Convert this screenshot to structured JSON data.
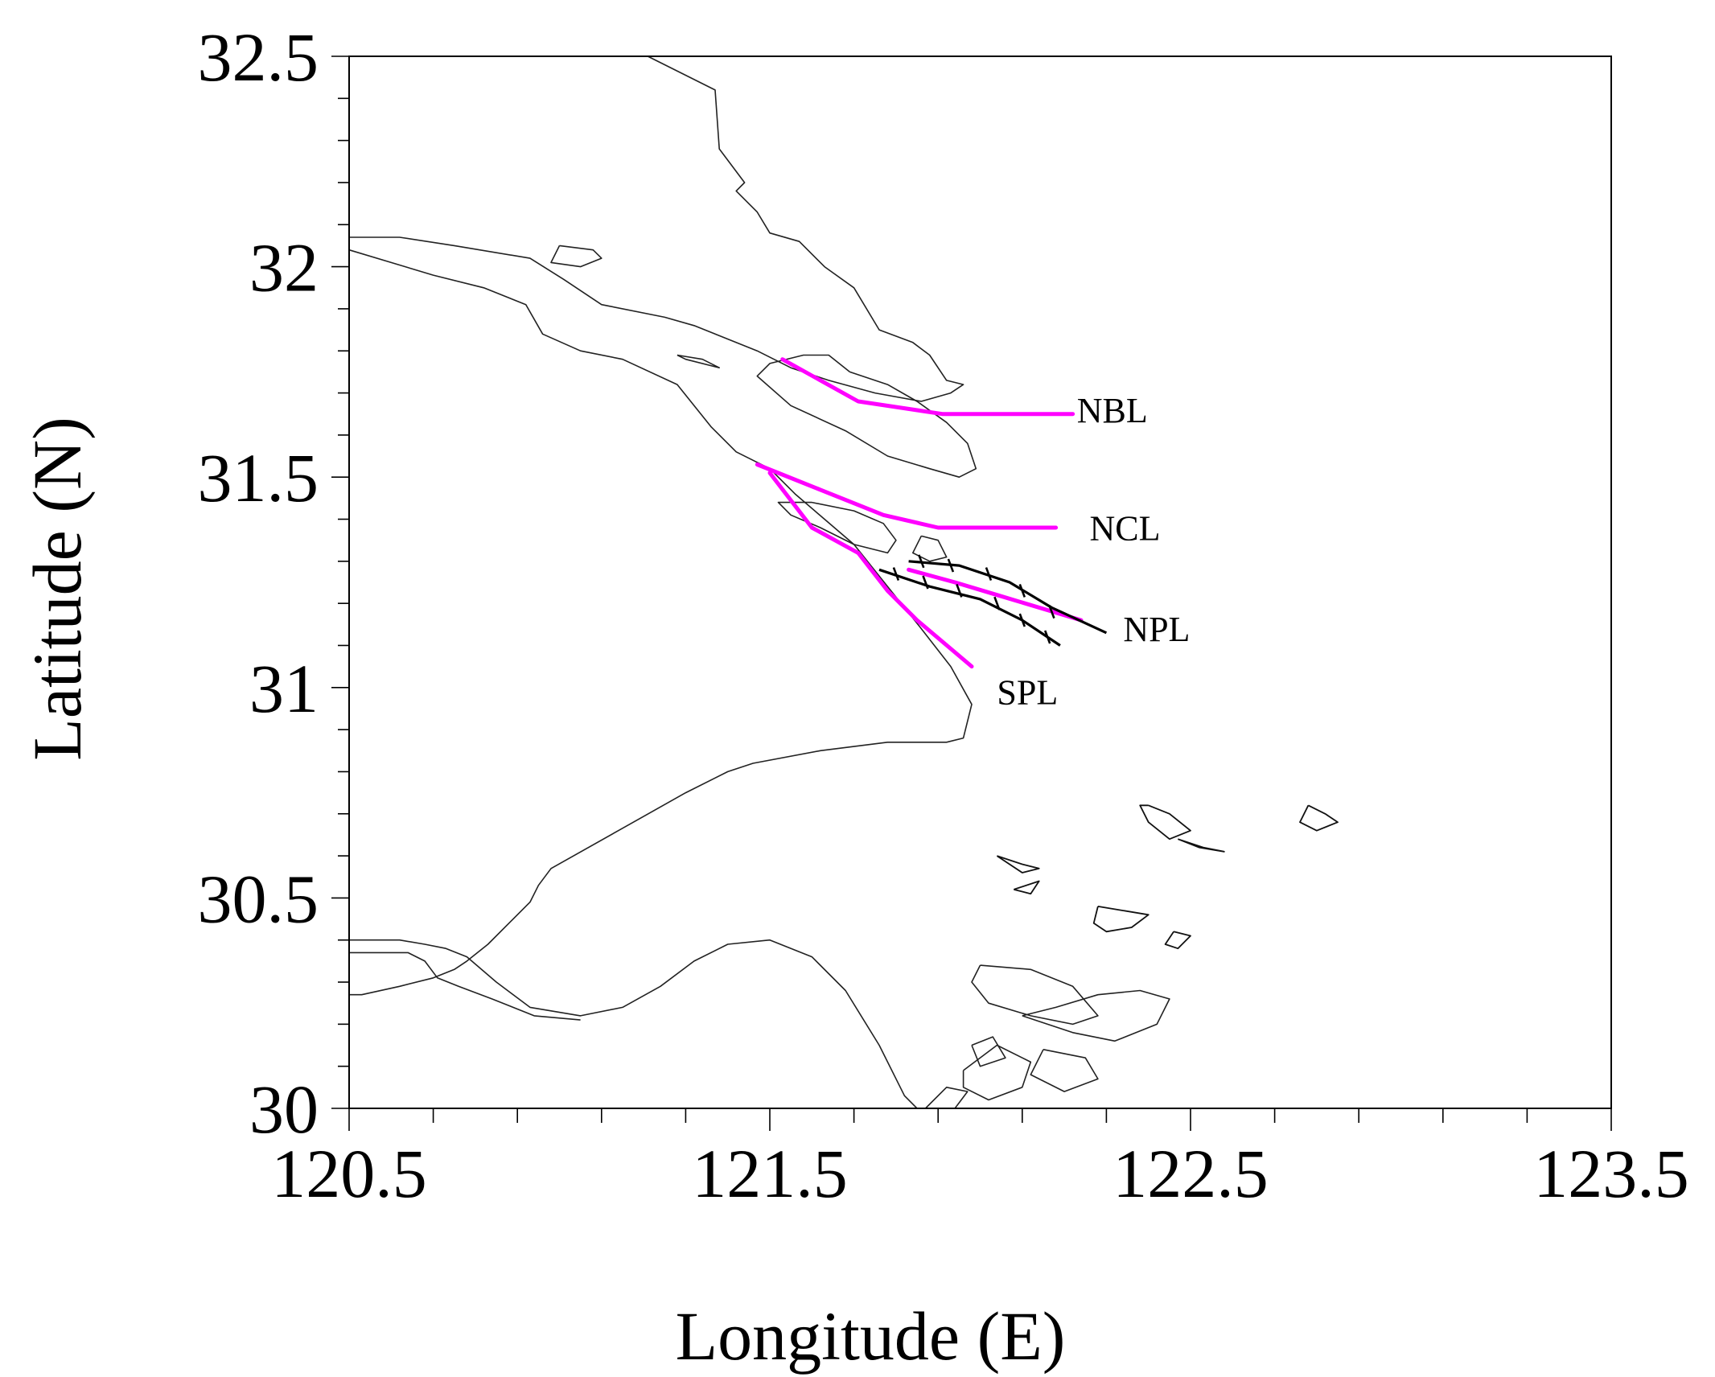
{
  "map": {
    "xlabel": "Longitude (E)",
    "ylabel": "Latitude (N)",
    "xlim": [
      120.5,
      123.5
    ],
    "ylim": [
      30.0,
      32.5
    ],
    "x_major_ticks": [
      120.5,
      121.5,
      122.5,
      123.5
    ],
    "x_tick_labels": [
      "120.5",
      "121.5",
      "122.5",
      "123.5"
    ],
    "y_major_ticks": [
      30.0,
      30.5,
      31.0,
      31.5,
      32.0,
      32.5
    ],
    "y_tick_labels": [
      "30",
      "30.5",
      "31",
      "31.5",
      "32",
      "32.5"
    ],
    "x_minor_step": 0.2,
    "y_minor_step": 0.1,
    "transect_color": "#ff00ff",
    "channel_color": "#000000",
    "coast_color": "#222222"
  },
  "transects": [
    {
      "name": "NBL",
      "label": "NBL",
      "label_at": [
        122.23,
        31.63
      ],
      "points": [
        [
          121.53,
          31.78
        ],
        [
          121.71,
          31.68
        ],
        [
          121.91,
          31.65
        ],
        [
          122.22,
          31.65
        ]
      ]
    },
    {
      "name": "NCL",
      "label": "NCL",
      "label_at": [
        122.26,
        31.35
      ],
      "points": [
        [
          121.47,
          31.53
        ],
        [
          121.62,
          31.47
        ],
        [
          121.77,
          31.41
        ],
        [
          121.9,
          31.38
        ],
        [
          122.18,
          31.38
        ]
      ]
    },
    {
      "name": "NPL",
      "label": "NPL",
      "label_at": [
        122.34,
        31.11
      ],
      "points": [
        [
          121.83,
          31.28
        ],
        [
          121.94,
          31.25
        ],
        [
          122.04,
          31.22
        ],
        [
          122.24,
          31.16
        ]
      ]
    },
    {
      "name": "SPL",
      "label": "SPL",
      "label_at": [
        122.04,
        30.96
      ],
      "points": [
        [
          121.5,
          31.51
        ],
        [
          121.6,
          31.38
        ],
        [
          121.71,
          31.32
        ],
        [
          121.78,
          31.23
        ],
        [
          121.85,
          31.16
        ],
        [
          121.98,
          31.05
        ]
      ]
    }
  ],
  "channel_lines": [
    {
      "name": "north-jetty",
      "points": [
        [
          121.83,
          31.3
        ],
        [
          121.95,
          31.29
        ],
        [
          122.07,
          31.25
        ],
        [
          122.17,
          31.19
        ],
        [
          122.3,
          31.13
        ]
      ],
      "ticks": [
        [
          121.86,
          31.3
        ],
        [
          121.93,
          31.29
        ],
        [
          122.02,
          31.27
        ],
        [
          122.1,
          31.23
        ],
        [
          122.17,
          31.18
        ]
      ]
    },
    {
      "name": "south-jetty",
      "points": [
        [
          121.76,
          31.28
        ],
        [
          121.88,
          31.24
        ],
        [
          122.0,
          31.21
        ],
        [
          122.1,
          31.16
        ],
        [
          122.19,
          31.1
        ]
      ],
      "ticks": [
        [
          121.8,
          31.27
        ],
        [
          121.87,
          31.25
        ],
        [
          121.95,
          31.23
        ],
        [
          122.04,
          31.2
        ],
        [
          122.1,
          31.16
        ],
        [
          122.16,
          31.12
        ]
      ]
    }
  ],
  "coastlines": [
    [
      [
        121.21,
        32.5
      ],
      [
        121.37,
        32.42
      ],
      [
        121.38,
        32.28
      ],
      [
        121.44,
        32.2
      ],
      [
        121.42,
        32.18
      ],
      [
        121.47,
        32.13
      ],
      [
        121.5,
        32.08
      ],
      [
        121.57,
        32.06
      ],
      [
        121.63,
        32.0
      ],
      [
        121.7,
        31.95
      ],
      [
        121.76,
        31.85
      ],
      [
        121.84,
        31.82
      ],
      [
        121.88,
        31.79
      ],
      [
        121.92,
        31.73
      ],
      [
        121.96,
        31.72
      ],
      [
        121.93,
        31.7
      ],
      [
        121.86,
        31.68
      ],
      [
        121.75,
        31.7
      ],
      [
        121.64,
        31.73
      ],
      [
        121.55,
        31.76
      ],
      [
        121.47,
        31.8
      ],
      [
        121.32,
        31.86
      ],
      [
        121.25,
        31.88
      ],
      [
        121.1,
        31.91
      ],
      [
        121.01,
        31.97
      ],
      [
        120.93,
        32.02
      ],
      [
        120.75,
        32.05
      ],
      [
        120.62,
        32.07
      ],
      [
        120.55,
        32.07
      ],
      [
        120.5,
        32.07
      ]
    ],
    [
      [
        120.5,
        32.04
      ],
      [
        120.6,
        32.01
      ],
      [
        120.7,
        31.98
      ],
      [
        120.82,
        31.95
      ],
      [
        120.92,
        31.91
      ],
      [
        120.96,
        31.84
      ],
      [
        121.05,
        31.8
      ],
      [
        121.15,
        31.78
      ],
      [
        121.28,
        31.72
      ],
      [
        121.36,
        31.62
      ],
      [
        121.42,
        31.56
      ],
      [
        121.5,
        31.52
      ],
      [
        121.56,
        31.46
      ],
      [
        121.63,
        31.4
      ],
      [
        121.7,
        31.34
      ],
      [
        121.78,
        31.24
      ],
      [
        121.86,
        31.14
      ],
      [
        121.93,
        31.05
      ],
      [
        121.98,
        30.96
      ],
      [
        121.96,
        30.88
      ],
      [
        121.92,
        30.87
      ],
      [
        121.78,
        30.87
      ],
      [
        121.62,
        30.85
      ],
      [
        121.46,
        30.82
      ],
      [
        121.4,
        30.8
      ],
      [
        121.3,
        30.75
      ],
      [
        121.14,
        30.66
      ],
      [
        120.98,
        30.57
      ],
      [
        120.95,
        30.53
      ],
      [
        120.93,
        30.49
      ],
      [
        120.83,
        30.39
      ],
      [
        120.78,
        30.35
      ],
      [
        120.75,
        30.33
      ],
      [
        120.7,
        30.31
      ],
      [
        120.62,
        30.29
      ],
      [
        120.53,
        30.27
      ],
      [
        120.5,
        30.27
      ]
    ],
    [
      [
        120.5,
        30.4
      ],
      [
        120.62,
        30.4
      ],
      [
        120.68,
        30.39
      ],
      [
        120.73,
        30.38
      ],
      [
        120.78,
        30.36
      ],
      [
        120.85,
        30.3
      ],
      [
        120.93,
        30.24
      ],
      [
        121.05,
        30.22
      ],
      [
        121.15,
        30.24
      ],
      [
        121.24,
        30.29
      ],
      [
        121.32,
        30.35
      ],
      [
        121.4,
        30.39
      ],
      [
        121.5,
        30.4
      ],
      [
        121.6,
        30.36
      ],
      [
        121.68,
        30.28
      ],
      [
        121.76,
        30.15
      ],
      [
        121.82,
        30.03
      ],
      [
        121.85,
        30.0
      ]
    ],
    [
      [
        121.69,
        31.75
      ],
      [
        121.78,
        31.72
      ],
      [
        121.85,
        31.68
      ],
      [
        121.92,
        31.63
      ],
      [
        121.97,
        31.58
      ],
      [
        121.99,
        31.52
      ],
      [
        121.95,
        31.5
      ],
      [
        121.88,
        31.52
      ],
      [
        121.78,
        31.55
      ],
      [
        121.68,
        31.61
      ],
      [
        121.55,
        31.67
      ],
      [
        121.47,
        31.74
      ],
      [
        121.5,
        31.77
      ],
      [
        121.58,
        31.79
      ],
      [
        121.64,
        31.79
      ],
      [
        121.69,
        31.75
      ]
    ],
    [
      [
        121.6,
        31.44
      ],
      [
        121.7,
        31.42
      ],
      [
        121.77,
        31.39
      ],
      [
        121.8,
        31.35
      ],
      [
        121.78,
        31.32
      ],
      [
        121.7,
        31.34
      ],
      [
        121.62,
        31.38
      ],
      [
        121.55,
        31.41
      ],
      [
        121.52,
        31.44
      ],
      [
        121.6,
        31.44
      ]
    ],
    [
      [
        121.86,
        31.36
      ],
      [
        121.9,
        31.35
      ],
      [
        121.92,
        31.31
      ],
      [
        121.88,
        31.3
      ],
      [
        121.84,
        31.32
      ],
      [
        121.86,
        31.36
      ]
    ],
    [
      [
        120.5,
        30.37
      ],
      [
        120.64,
        30.37
      ],
      [
        120.68,
        30.35
      ],
      [
        120.71,
        30.31
      ],
      [
        120.76,
        30.29
      ],
      [
        120.84,
        30.26
      ],
      [
        120.94,
        30.22
      ],
      [
        121.05,
        30.21
      ]
    ],
    [
      [
        121.0,
        32.05
      ],
      [
        121.08,
        32.04
      ],
      [
        121.1,
        32.02
      ],
      [
        121.05,
        32.0
      ],
      [
        120.98,
        32.01
      ],
      [
        121.0,
        32.05
      ]
    ],
    [
      [
        121.28,
        31.79
      ],
      [
        121.34,
        31.78
      ],
      [
        121.38,
        31.76
      ],
      [
        121.3,
        31.78
      ],
      [
        121.28,
        31.79
      ]
    ],
    [
      [
        122.0,
        30.34
      ],
      [
        122.12,
        30.33
      ],
      [
        122.22,
        30.29
      ],
      [
        122.28,
        30.22
      ],
      [
        122.22,
        30.2
      ],
      [
        122.12,
        30.22
      ],
      [
        122.02,
        30.25
      ],
      [
        121.98,
        30.3
      ],
      [
        122.0,
        30.34
      ]
    ],
    [
      [
        122.1,
        30.22
      ],
      [
        122.18,
        30.24
      ],
      [
        122.28,
        30.27
      ],
      [
        122.38,
        30.28
      ],
      [
        122.45,
        30.26
      ],
      [
        122.42,
        30.2
      ],
      [
        122.32,
        30.16
      ],
      [
        122.22,
        30.18
      ],
      [
        122.1,
        30.22
      ]
    ],
    [
      [
        121.96,
        30.09
      ],
      [
        122.04,
        30.15
      ],
      [
        122.12,
        30.11
      ],
      [
        122.1,
        30.05
      ],
      [
        122.02,
        30.02
      ],
      [
        121.96,
        30.05
      ],
      [
        121.96,
        30.09
      ]
    ],
    [
      [
        121.87,
        30.0
      ],
      [
        121.92,
        30.05
      ],
      [
        121.97,
        30.04
      ],
      [
        121.94,
        30.0
      ],
      [
        121.87,
        30.0
      ]
    ],
    [
      [
        122.15,
        30.14
      ],
      [
        122.25,
        30.12
      ],
      [
        122.28,
        30.07
      ],
      [
        122.2,
        30.04
      ],
      [
        122.12,
        30.08
      ],
      [
        122.15,
        30.14
      ]
    ],
    [
      [
        121.98,
        30.15
      ],
      [
        122.03,
        30.17
      ],
      [
        122.06,
        30.12
      ],
      [
        122.0,
        30.1
      ],
      [
        121.98,
        30.15
      ]
    ]
  ],
  "islands": [
    [
      [
        122.4,
        30.72
      ],
      [
        122.45,
        30.7
      ],
      [
        122.5,
        30.66
      ],
      [
        122.45,
        30.64
      ],
      [
        122.4,
        30.68
      ],
      [
        122.38,
        30.72
      ],
      [
        122.4,
        30.72
      ]
    ],
    [
      [
        122.47,
        30.64
      ],
      [
        122.52,
        30.62
      ],
      [
        122.58,
        30.61
      ],
      [
        122.53,
        30.62
      ],
      [
        122.47,
        30.64
      ]
    ],
    [
      [
        122.78,
        30.72
      ],
      [
        122.82,
        30.7
      ],
      [
        122.85,
        30.68
      ],
      [
        122.8,
        30.66
      ],
      [
        122.76,
        30.68
      ],
      [
        122.78,
        30.72
      ]
    ],
    [
      [
        122.04,
        30.6
      ],
      [
        122.1,
        30.58
      ],
      [
        122.14,
        30.57
      ],
      [
        122.1,
        30.56
      ],
      [
        122.04,
        30.6
      ]
    ],
    [
      [
        122.08,
        30.52
      ],
      [
        122.12,
        30.51
      ],
      [
        122.14,
        30.54
      ],
      [
        122.08,
        30.52
      ]
    ],
    [
      [
        122.28,
        30.48
      ],
      [
        122.34,
        30.47
      ],
      [
        122.4,
        30.46
      ],
      [
        122.36,
        30.43
      ],
      [
        122.3,
        30.42
      ],
      [
        122.27,
        30.44
      ],
      [
        122.28,
        30.48
      ]
    ],
    [
      [
        122.46,
        30.42
      ],
      [
        122.5,
        30.41
      ],
      [
        122.47,
        30.38
      ],
      [
        122.44,
        30.39
      ],
      [
        122.46,
        30.42
      ]
    ]
  ]
}
